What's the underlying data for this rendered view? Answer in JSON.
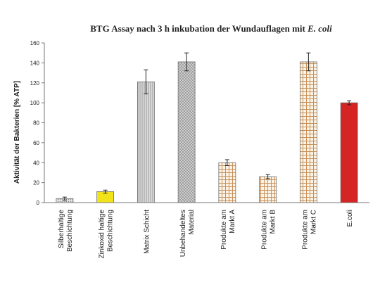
{
  "chart_data": {
    "type": "bar",
    "title": "BTG Assay nach 3 h inkubation der Wundauflagen mit",
    "title_italic": "E. coli",
    "ylabel": "Aktivität der Bakterien [% ATP]",
    "ylim": [
      0,
      160
    ],
    "yticks": [
      "0",
      "20",
      "40",
      "60",
      "80",
      "100",
      "120",
      "140",
      "160"
    ],
    "grid": false,
    "categories": [
      [
        "Silberhaltige",
        "Beschichtung"
      ],
      [
        "Zinkoxid haltige",
        "Beschichtung"
      ],
      [
        "Matrix Schicht"
      ],
      [
        "Unbehandeltes",
        "Material"
      ],
      [
        "Produkte am",
        "Markt A"
      ],
      [
        "Produkte am",
        "Markt B"
      ],
      [
        "Produkte am",
        "Markt C"
      ],
      [
        "E.coli"
      ]
    ],
    "values": [
      4,
      11,
      121,
      141,
      40,
      26,
      141,
      100
    ],
    "errors": [
      1.5,
      1.5,
      12,
      9,
      3,
      2,
      9,
      2
    ],
    "colors": [
      "#b8b8b8",
      "#f2e21a",
      "#c2c2c2",
      "#b0b0b0",
      "#c8915a",
      "#c8915a",
      "#d4a373",
      "#d42424"
    ],
    "patterns": [
      "dots",
      "solid",
      "vlines",
      "diag",
      "grid",
      "grid",
      "grid",
      "solid"
    ]
  }
}
